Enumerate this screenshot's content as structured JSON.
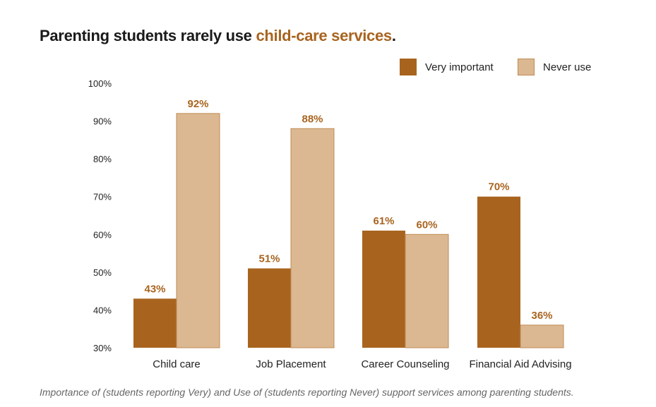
{
  "title": {
    "prefix": "Parenting students rarely use ",
    "highlight": "child-care services",
    "suffix": "."
  },
  "caption": "Importance of (students reporting Very) and Use of (students reporting Never) support services among parenting students.",
  "colors": {
    "very_important": "#a8641f",
    "never_use": "#dbb891",
    "highlight": "#a8641f",
    "never_use_border": "#c08a55"
  },
  "chart_data": {
    "type": "bar",
    "title": "Parenting students rarely use child-care services.",
    "xlabel": "",
    "ylabel": "",
    "ylim": [
      30,
      100
    ],
    "yticks": [
      "30%",
      "40%",
      "50%",
      "60%",
      "70%",
      "80%",
      "90%",
      "100%"
    ],
    "ytick_values": [
      30,
      40,
      50,
      60,
      70,
      80,
      90,
      100
    ],
    "categories": [
      "Child care",
      "Job Placement",
      "Career Counseling",
      "Financial Aid Advising"
    ],
    "series": [
      {
        "name": "Very important",
        "values": [
          43,
          51,
          61,
          70
        ],
        "labels": [
          "43%",
          "51%",
          "61%",
          "70%"
        ]
      },
      {
        "name": "Never use",
        "values": [
          92,
          88,
          60,
          36
        ],
        "labels": [
          "92%",
          "88%",
          "60%",
          "36%"
        ]
      }
    ],
    "legend_position": "top-right",
    "grid": false
  }
}
